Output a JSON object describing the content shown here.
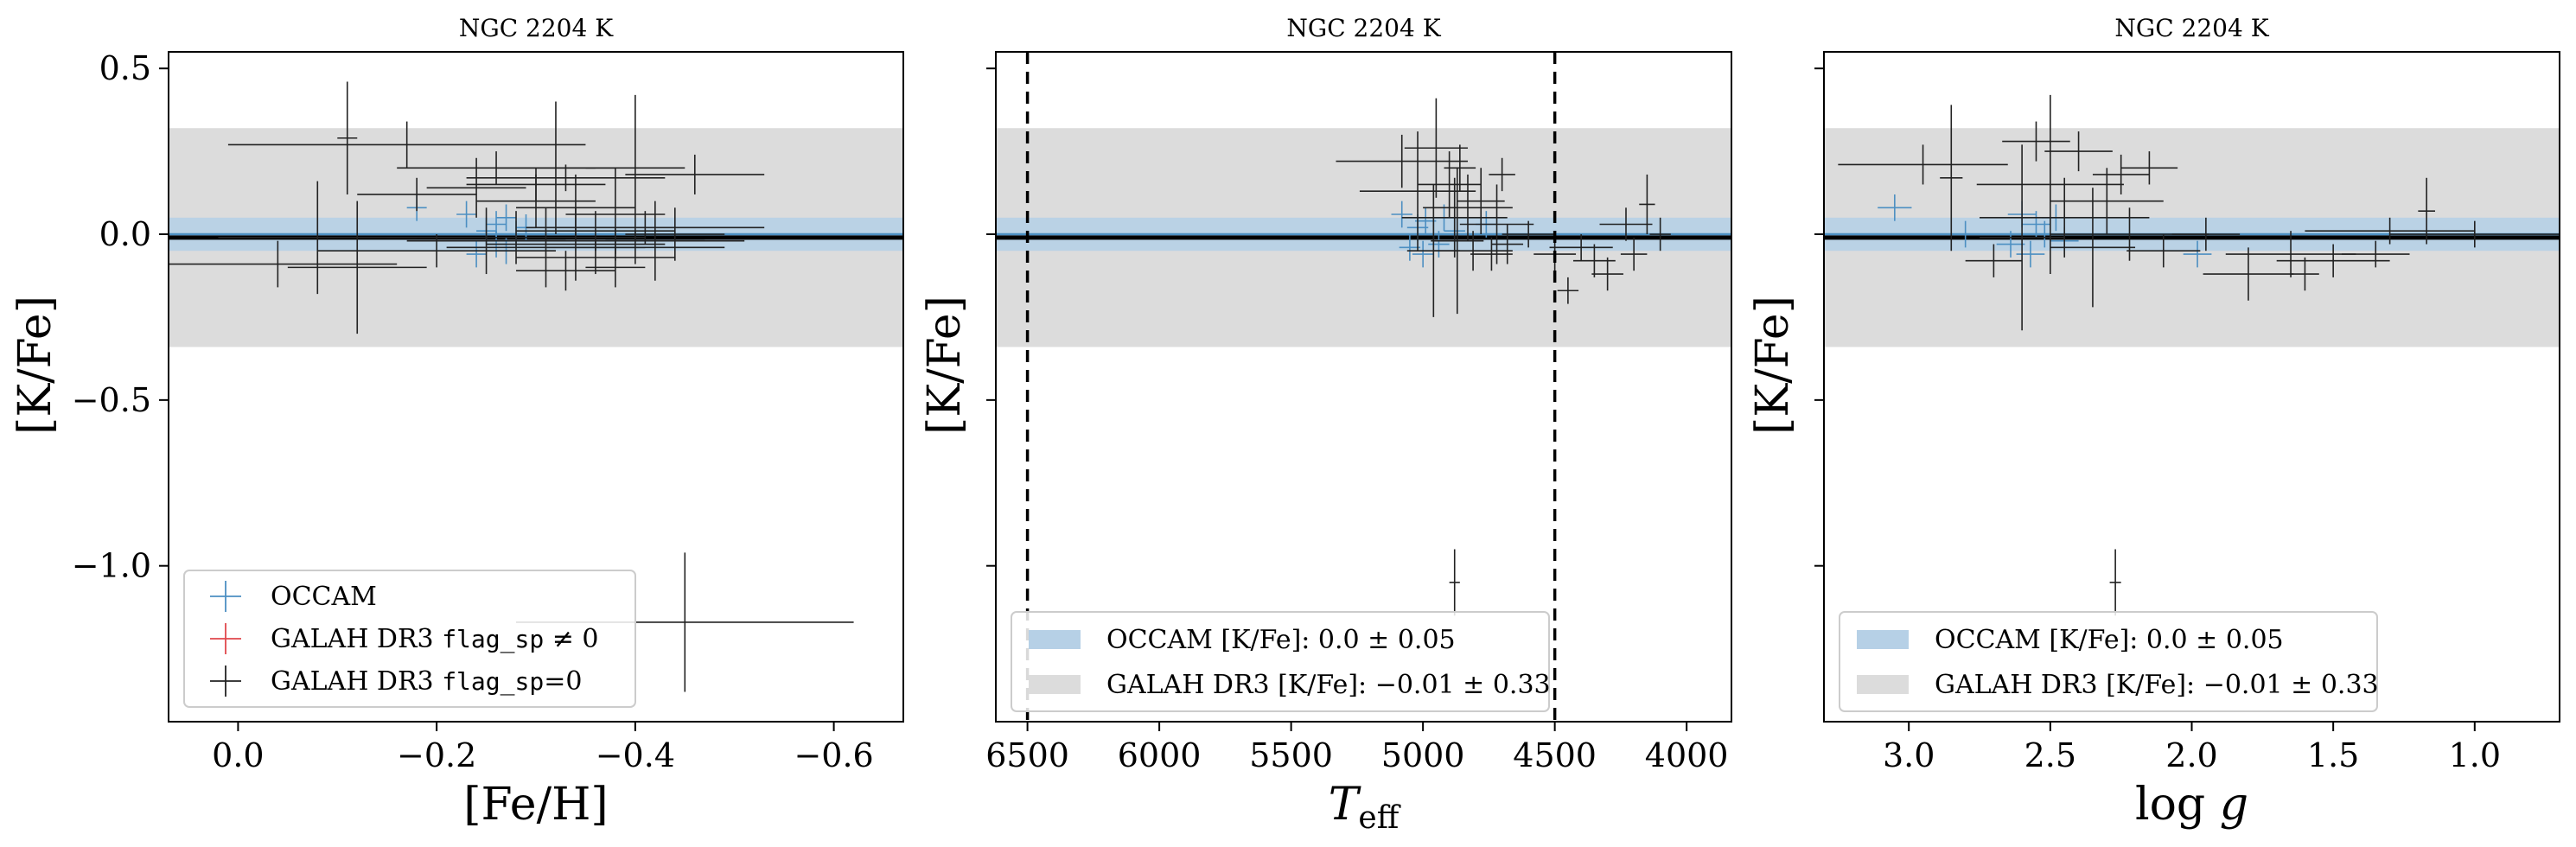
{
  "colors": {
    "occam": "#4c8fc2",
    "occam_band": "#b6d0e6",
    "galah_band": "#dcdcdc",
    "galah_flagged": "#e0474c",
    "galah_ok": "#222222",
    "mean_line": "#000000"
  },
  "chart_data": [
    {
      "type": "scatter",
      "title": "NGC 2204 K",
      "xlabel": "[Fe/H]",
      "ylabel": "[K/Fe]",
      "xlim": [
        0.07,
        -0.67
      ],
      "ylim": [
        -1.47,
        0.55
      ],
      "xticks": [
        "0.0",
        "−0.2",
        "−0.4",
        "−0.6"
      ],
      "xtick_values": [
        0.0,
        -0.2,
        -0.4,
        -0.6
      ],
      "yticks": [
        "0.5",
        "0.0",
        "−0.5",
        "−1.0"
      ],
      "ytick_values": [
        0.5,
        0.0,
        -0.5,
        -1.0
      ],
      "show_yticklabels": true,
      "bands": [
        {
          "name": "OCCAM",
          "center": 0.0,
          "half_width": 0.05
        },
        {
          "name": "GALAH DR3",
          "center": -0.01,
          "half_width": 0.33
        }
      ],
      "vlines": [],
      "legend": {
        "position": "lower left",
        "entries": [
          {
            "kind": "marker",
            "color_key": "occam",
            "label": "OCCAM"
          },
          {
            "kind": "marker",
            "color_key": "galah_flagged",
            "label_prefix": "GALAH DR3 ",
            "label_code": "flag_sp",
            "label_suffix": " ≠ 0"
          },
          {
            "kind": "marker",
            "color_key": "galah_ok",
            "label_prefix": "GALAH DR3 ",
            "label_code": "flag_sp",
            "label_suffix": "=0"
          }
        ]
      },
      "series": [
        {
          "name": "OCCAM",
          "color_key": "occam",
          "points": [
            {
              "x": -0.18,
              "y": 0.08,
              "xerr": 0.01,
              "yerr": 0.04
            },
            {
              "x": -0.23,
              "y": 0.06,
              "xerr": 0.01,
              "yerr": 0.04
            },
            {
              "x": -0.24,
              "y": -0.06,
              "xerr": 0.01,
              "yerr": 0.04
            },
            {
              "x": -0.25,
              "y": 0.01,
              "xerr": 0.01,
              "yerr": 0.04
            },
            {
              "x": -0.26,
              "y": 0.03,
              "xerr": 0.01,
              "yerr": 0.04
            },
            {
              "x": -0.26,
              "y": -0.03,
              "xerr": 0.01,
              "yerr": 0.04
            },
            {
              "x": -0.27,
              "y": 0.05,
              "xerr": 0.01,
              "yerr": 0.04
            },
            {
              "x": -0.27,
              "y": -0.05,
              "xerr": 0.01,
              "yerr": 0.04
            },
            {
              "x": -0.28,
              "y": 0.0,
              "xerr": 0.01,
              "yerr": 0.04
            },
            {
              "x": -0.29,
              "y": 0.02,
              "xerr": 0.01,
              "yerr": 0.04
            }
          ]
        },
        {
          "name": "GALAH DR3 flag_sp=0",
          "color_key": "galah_ok",
          "points": [
            {
              "x": -0.17,
              "y": 0.27,
              "xerr": 0.18,
              "yerr": 0.07
            },
            {
              "x": -0.04,
              "y": -0.09,
              "xerr": 0.12,
              "yerr": 0.07
            },
            {
              "x": -0.11,
              "y": 0.29,
              "xerr": 0.01,
              "yerr": 0.17
            },
            {
              "x": -0.12,
              "y": -0.1,
              "xerr": 0.07,
              "yerr": 0.2
            },
            {
              "x": -0.08,
              "y": -0.01,
              "xerr": 0.1,
              "yerr": 0.17
            },
            {
              "x": -0.18,
              "y": 0.12,
              "xerr": 0.06,
              "yerr": 0.05
            },
            {
              "x": -0.2,
              "y": -0.05,
              "xerr": 0.12,
              "yerr": 0.05
            },
            {
              "x": -0.26,
              "y": 0.2,
              "xerr": 0.1,
              "yerr": 0.05
            },
            {
              "x": -0.24,
              "y": 0.14,
              "xerr": 0.05,
              "yerr": 0.09
            },
            {
              "x": -0.3,
              "y": 0.1,
              "xerr": 0.06,
              "yerr": 0.08
            },
            {
              "x": -0.28,
              "y": -0.01,
              "xerr": 0.13,
              "yerr": 0.08
            },
            {
              "x": -0.3,
              "y": 0.15,
              "xerr": 0.07,
              "yerr": 0.05
            },
            {
              "x": -0.31,
              "y": -0.04,
              "xerr": 0.1,
              "yerr": 0.12
            },
            {
              "x": -0.32,
              "y": 0.2,
              "xerr": 0.06,
              "yerr": 0.2
            },
            {
              "x": -0.33,
              "y": 0.17,
              "xerr": 0.1,
              "yerr": 0.04
            },
            {
              "x": -0.34,
              "y": -0.03,
              "xerr": 0.09,
              "yerr": 0.11
            },
            {
              "x": -0.34,
              "y": 0.08,
              "xerr": 0.06,
              "yerr": 0.1
            },
            {
              "x": -0.36,
              "y": 0.01,
              "xerr": 0.08,
              "yerr": 0.06
            },
            {
              "x": -0.36,
              "y": -0.07,
              "xerr": 0.08,
              "yerr": 0.05
            },
            {
              "x": -0.38,
              "y": -0.02,
              "xerr": 0.13,
              "yerr": 0.04
            },
            {
              "x": -0.38,
              "y": 0.06,
              "xerr": 0.05,
              "yerr": 0.14
            },
            {
              "x": -0.4,
              "y": 0.2,
              "xerr": 0.05,
              "yerr": 0.22
            },
            {
              "x": -0.4,
              "y": -0.04,
              "xerr": 0.09,
              "yerr": 0.05
            },
            {
              "x": -0.41,
              "y": 0.02,
              "xerr": 0.12,
              "yerr": 0.05
            },
            {
              "x": -0.42,
              "y": -0.02,
              "xerr": 0.05,
              "yerr": 0.12
            },
            {
              "x": -0.44,
              "y": 0.0,
              "xerr": 0.05,
              "yerr": 0.08
            },
            {
              "x": -0.46,
              "y": 0.18,
              "xerr": 0.07,
              "yerr": 0.06
            },
            {
              "x": -0.38,
              "y": -0.1,
              "xerr": 0.03,
              "yerr": 0.06
            },
            {
              "x": -0.33,
              "y": -0.11,
              "xerr": 0.05,
              "yerr": 0.06
            },
            {
              "x": -0.25,
              "y": -0.02,
              "xerr": 0.08,
              "yerr": 0.1
            },
            {
              "x": -0.45,
              "y": -1.17,
              "xerr": 0.17,
              "yerr": 0.21
            }
          ]
        }
      ]
    },
    {
      "type": "scatter",
      "title": "NGC 2204 K",
      "xlabel": "T_eff",
      "ylabel": "[K/Fe]",
      "xlim": [
        6620,
        3830
      ],
      "ylim": [
        -1.47,
        0.55
      ],
      "xticks": [
        "6500",
        "6000",
        "5500",
        "5000",
        "4500",
        "4000"
      ],
      "xtick_values": [
        6500,
        6000,
        5500,
        5000,
        4500,
        4000
      ],
      "yticks": [],
      "ytick_values": [
        0.5,
        0.0,
        -0.5,
        -1.0
      ],
      "show_yticklabels": false,
      "bands": [
        {
          "name": "OCCAM",
          "center": 0.0,
          "half_width": 0.05
        },
        {
          "name": "GALAH DR3",
          "center": -0.01,
          "half_width": 0.33
        }
      ],
      "vlines": [
        6500,
        4500
      ],
      "legend": {
        "position": "lower left",
        "entries": [
          {
            "kind": "patch",
            "color_key": "occam_band",
            "label_prefix": "OCCAM [K/Fe]: ",
            "label_value": "0.0 ± 0.05"
          },
          {
            "kind": "patch",
            "color_key": "galah_band",
            "label_prefix": "GALAH DR3 [K/Fe]: ",
            "label_value": "−0.01 ± 0.33"
          }
        ]
      },
      "series": [
        {
          "name": "OCCAM",
          "color_key": "occam",
          "points": [
            {
              "x": 5080,
              "y": 0.06,
              "xerr": 40,
              "yerr": 0.04
            },
            {
              "x": 5050,
              "y": -0.04,
              "xerr": 40,
              "yerr": 0.04
            },
            {
              "x": 5020,
              "y": 0.02,
              "xerr": 40,
              "yerr": 0.04
            },
            {
              "x": 5000,
              "y": -0.06,
              "xerr": 40,
              "yerr": 0.04
            },
            {
              "x": 4990,
              "y": 0.04,
              "xerr": 40,
              "yerr": 0.04
            },
            {
              "x": 4960,
              "y": 0.0,
              "xerr": 40,
              "yerr": 0.04
            },
            {
              "x": 4940,
              "y": -0.03,
              "xerr": 40,
              "yerr": 0.04
            },
            {
              "x": 4920,
              "y": 0.05,
              "xerr": 40,
              "yerr": 0.04
            },
            {
              "x": 4880,
              "y": 0.01,
              "xerr": 40,
              "yerr": 0.04
            },
            {
              "x": 4760,
              "y": 0.03,
              "xerr": 40,
              "yerr": 0.04
            }
          ]
        },
        {
          "name": "GALAH DR3 flag_sp=0",
          "color_key": "galah_ok",
          "points": [
            {
              "x": 5080,
              "y": 0.22,
              "xerr": 250,
              "yerr": 0.08
            },
            {
              "x": 5020,
              "y": 0.13,
              "xerr": 220,
              "yerr": 0.18
            },
            {
              "x": 4950,
              "y": 0.26,
              "xerr": 120,
              "yerr": 0.15
            },
            {
              "x": 4900,
              "y": 0.15,
              "xerr": 120,
              "yerr": 0.1
            },
            {
              "x": 4960,
              "y": -0.05,
              "xerr": 100,
              "yerr": 0.2
            },
            {
              "x": 4880,
              "y": 0.05,
              "xerr": 200,
              "yerr": 0.12
            },
            {
              "x": 4870,
              "y": -0.02,
              "xerr": 100,
              "yerr": 0.22
            },
            {
              "x": 4860,
              "y": 0.2,
              "xerr": 60,
              "yerr": 0.07
            },
            {
              "x": 4830,
              "y": 0.08,
              "xerr": 170,
              "yerr": 0.1
            },
            {
              "x": 4810,
              "y": -0.05,
              "xerr": 150,
              "yerr": 0.06
            },
            {
              "x": 4780,
              "y": 0.1,
              "xerr": 90,
              "yerr": 0.1
            },
            {
              "x": 4740,
              "y": -0.06,
              "xerr": 80,
              "yerr": 0.05
            },
            {
              "x": 4720,
              "y": 0.03,
              "xerr": 140,
              "yerr": 0.12
            },
            {
              "x": 4700,
              "y": 0.18,
              "xerr": 50,
              "yerr": 0.05
            },
            {
              "x": 4680,
              "y": -0.03,
              "xerr": 60,
              "yerr": 0.06
            },
            {
              "x": 4600,
              "y": 0.0,
              "xerr": 100,
              "yerr": 0.04
            },
            {
              "x": 4500,
              "y": -0.06,
              "xerr": 80,
              "yerr": 0.05
            },
            {
              "x": 4450,
              "y": -0.17,
              "xerr": 40,
              "yerr": 0.04
            },
            {
              "x": 4400,
              "y": -0.04,
              "xerr": 120,
              "yerr": 0.04
            },
            {
              "x": 4350,
              "y": -0.08,
              "xerr": 80,
              "yerr": 0.05
            },
            {
              "x": 4300,
              "y": -0.12,
              "xerr": 60,
              "yerr": 0.05
            },
            {
              "x": 4230,
              "y": 0.03,
              "xerr": 100,
              "yerr": 0.05
            },
            {
              "x": 4200,
              "y": -0.06,
              "xerr": 50,
              "yerr": 0.05
            },
            {
              "x": 4150,
              "y": 0.09,
              "xerr": 30,
              "yerr": 0.09
            },
            {
              "x": 4100,
              "y": 0.0,
              "xerr": 40,
              "yerr": 0.05
            },
            {
              "x": 4880,
              "y": -1.05,
              "xerr": 20,
              "yerr": 0.1
            }
          ]
        }
      ]
    },
    {
      "type": "scatter",
      "title": "NGC 2204 K",
      "xlabel": "log g",
      "ylabel": "[K/Fe]",
      "xlim": [
        3.3,
        0.7
      ],
      "ylim": [
        -1.47,
        0.55
      ],
      "xticks": [
        "3.0",
        "2.5",
        "2.0",
        "1.5",
        "1.0"
      ],
      "xtick_values": [
        3.0,
        2.5,
        2.0,
        1.5,
        1.0
      ],
      "yticks": [],
      "ytick_values": [
        0.5,
        0.0,
        -0.5,
        -1.0
      ],
      "show_yticklabels": false,
      "bands": [
        {
          "name": "OCCAM",
          "center": 0.0,
          "half_width": 0.05
        },
        {
          "name": "GALAH DR3",
          "center": -0.01,
          "half_width": 0.33
        }
      ],
      "vlines": [],
      "legend": {
        "position": "lower left",
        "entries": [
          {
            "kind": "patch",
            "color_key": "occam_band",
            "label_prefix": "OCCAM [K/Fe]: ",
            "label_value": "0.0 ± 0.05"
          },
          {
            "kind": "patch",
            "color_key": "galah_band",
            "label_prefix": "GALAH DR3 [K/Fe]: ",
            "label_value": "−0.01 ± 0.33"
          }
        ]
      },
      "series": [
        {
          "name": "OCCAM",
          "color_key": "occam",
          "points": [
            {
              "x": 3.05,
              "y": 0.08,
              "xerr": 0.06,
              "yerr": 0.04
            },
            {
              "x": 2.8,
              "y": 0.0,
              "xerr": 0.05,
              "yerr": 0.04
            },
            {
              "x": 2.64,
              "y": -0.03,
              "xerr": 0.05,
              "yerr": 0.04
            },
            {
              "x": 2.6,
              "y": 0.06,
              "xerr": 0.05,
              "yerr": 0.04
            },
            {
              "x": 2.57,
              "y": -0.06,
              "xerr": 0.05,
              "yerr": 0.04
            },
            {
              "x": 2.55,
              "y": 0.03,
              "xerr": 0.05,
              "yerr": 0.04
            },
            {
              "x": 2.52,
              "y": 0.0,
              "xerr": 0.05,
              "yerr": 0.04
            },
            {
              "x": 2.48,
              "y": 0.05,
              "xerr": 0.05,
              "yerr": 0.04
            },
            {
              "x": 2.45,
              "y": -0.02,
              "xerr": 0.05,
              "yerr": 0.04
            },
            {
              "x": 1.98,
              "y": -0.06,
              "xerr": 0.05,
              "yerr": 0.04
            }
          ]
        },
        {
          "name": "GALAH DR3 flag_sp=0",
          "color_key": "galah_ok",
          "points": [
            {
              "x": 2.95,
              "y": 0.21,
              "xerr": 0.3,
              "yerr": 0.06
            },
            {
              "x": 2.85,
              "y": 0.17,
              "xerr": 0.04,
              "yerr": 0.22
            },
            {
              "x": 2.7,
              "y": -0.08,
              "xerr": 0.1,
              "yerr": 0.05
            },
            {
              "x": 2.6,
              "y": -0.01,
              "xerr": 0.15,
              "yerr": 0.28
            },
            {
              "x": 2.55,
              "y": 0.28,
              "xerr": 0.12,
              "yerr": 0.06
            },
            {
              "x": 2.5,
              "y": 0.15,
              "xerr": 0.26,
              "yerr": 0.27
            },
            {
              "x": 2.45,
              "y": 0.05,
              "xerr": 0.3,
              "yerr": 0.12
            },
            {
              "x": 2.4,
              "y": 0.25,
              "xerr": 0.12,
              "yerr": 0.06
            },
            {
              "x": 2.35,
              "y": -0.04,
              "xerr": 0.15,
              "yerr": 0.18
            },
            {
              "x": 2.3,
              "y": 0.1,
              "xerr": 0.2,
              "yerr": 0.1
            },
            {
              "x": 2.25,
              "y": 0.18,
              "xerr": 0.1,
              "yerr": 0.06
            },
            {
              "x": 2.22,
              "y": 0.0,
              "xerr": 0.28,
              "yerr": 0.08
            },
            {
              "x": 2.15,
              "y": 0.2,
              "xerr": 0.1,
              "yerr": 0.05
            },
            {
              "x": 2.1,
              "y": -0.05,
              "xerr": 0.13,
              "yerr": 0.05
            },
            {
              "x": 1.95,
              "y": 0.0,
              "xerr": 0.12,
              "yerr": 0.05
            },
            {
              "x": 1.8,
              "y": -0.12,
              "xerr": 0.16,
              "yerr": 0.08
            },
            {
              "x": 1.65,
              "y": -0.06,
              "xerr": 0.23,
              "yerr": 0.07
            },
            {
              "x": 1.6,
              "y": -0.12,
              "xerr": 0.05,
              "yerr": 0.05
            },
            {
              "x": 1.5,
              "y": -0.08,
              "xerr": 0.2,
              "yerr": 0.05
            },
            {
              "x": 1.35,
              "y": -0.06,
              "xerr": 0.12,
              "yerr": 0.04
            },
            {
              "x": 1.3,
              "y": 0.01,
              "xerr": 0.3,
              "yerr": 0.04
            },
            {
              "x": 1.17,
              "y": 0.07,
              "xerr": 0.03,
              "yerr": 0.1
            },
            {
              "x": 1.0,
              "y": 0.0,
              "xerr": 0.3,
              "yerr": 0.04
            },
            {
              "x": 2.27,
              "y": -1.05,
              "xerr": 0.02,
              "yerr": 0.1
            }
          ]
        }
      ]
    }
  ]
}
